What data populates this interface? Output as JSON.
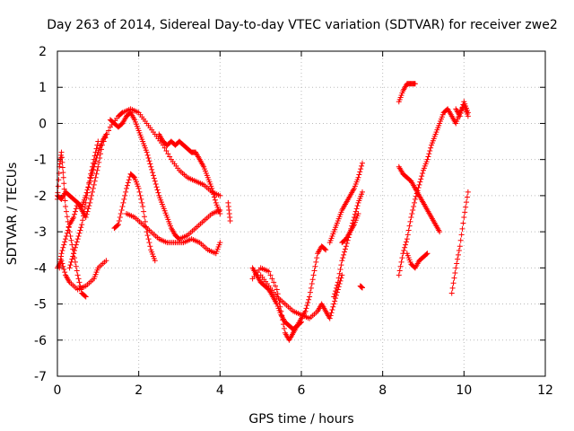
{
  "chart_data": {
    "type": "scatter",
    "title": "Day 263 of 2014, Sidereal Day-to-day VTEC variation (SDTVAR) for receiver zwe2",
    "xlabel": "GPS time / hours",
    "ylabel": "SDTVAR / TECUs",
    "xlim": [
      0,
      12
    ],
    "ylim": [
      -7,
      2
    ],
    "xticks": [
      "0",
      "2",
      "4",
      "6",
      "8",
      "10",
      "12"
    ],
    "yticks": [
      "-7",
      "-6",
      "-5",
      "-4",
      "-3",
      "-2",
      "-1",
      "0",
      "1",
      "2"
    ],
    "grid": true,
    "marker": "+",
    "color": "#ff0000",
    "series": [
      {
        "name": "track-1",
        "x": [
          0.0,
          0.1,
          0.2,
          0.3,
          0.5,
          0.7,
          0.9,
          1.0,
          1.2
        ],
        "y": [
          -4.0,
          -3.8,
          -4.2,
          -4.4,
          -4.6,
          -4.5,
          -4.3,
          -4.0,
          -3.8
        ]
      },
      {
        "name": "track-2",
        "x": [
          0.0,
          0.05,
          0.1,
          0.15,
          0.2,
          0.3,
          0.4,
          0.5,
          0.6,
          0.7
        ],
        "y": [
          -2.1,
          -1.2,
          -0.8,
          -1.5,
          -2.3,
          -3.0,
          -3.6,
          -4.2,
          -4.7,
          -4.8
        ]
      },
      {
        "name": "track-3",
        "x": [
          0.0,
          0.1,
          0.2,
          0.3,
          0.4,
          0.5,
          0.6,
          0.7,
          0.8,
          0.9,
          1.0,
          1.1,
          1.2
        ],
        "y": [
          -2.0,
          -2.1,
          -1.9,
          -2.0,
          -2.1,
          -2.2,
          -2.3,
          -2.0,
          -1.6,
          -1.2,
          -0.8,
          -0.5,
          -0.3
        ]
      },
      {
        "name": "track-4",
        "x": [
          0.05,
          0.1,
          0.2,
          0.3,
          0.4,
          0.5,
          0.6,
          0.7,
          0.8,
          0.9,
          1.0,
          1.1,
          1.3,
          1.5,
          1.6,
          1.8,
          2.0,
          2.2,
          2.4,
          2.6,
          2.8,
          3.0,
          3.2,
          3.4,
          3.6,
          3.8,
          4.0
        ],
        "y": [
          -4.0,
          -3.6,
          -3.2,
          -2.8,
          -2.6,
          -2.2,
          -2.4,
          -2.6,
          -2.2,
          -1.7,
          -1.2,
          -0.6,
          -0.1,
          0.2,
          0.3,
          0.4,
          0.3,
          0.0,
          -0.3,
          -0.6,
          -1.0,
          -1.3,
          -1.5,
          -1.6,
          -1.7,
          -1.9,
          -2.0
        ]
      },
      {
        "name": "track-5",
        "x": [
          0.3,
          0.4,
          0.5,
          0.6,
          0.7,
          0.8,
          0.9,
          1.0
        ],
        "y": [
          -4.0,
          -3.6,
          -3.2,
          -2.8,
          -2.2,
          -1.5,
          -1.0,
          -0.5
        ]
      },
      {
        "name": "track-6",
        "x": [
          1.4,
          1.5,
          1.6,
          1.7,
          1.8,
          1.9,
          2.0,
          2.1,
          2.2,
          2.3,
          2.4
        ],
        "y": [
          -2.9,
          -2.8,
          -2.3,
          -1.8,
          -1.4,
          -1.5,
          -1.8,
          -2.3,
          -3.0,
          -3.5,
          -3.8
        ]
      },
      {
        "name": "track-7",
        "x": [
          1.3,
          1.4,
          1.5,
          1.6,
          1.7,
          1.8,
          1.9,
          2.0,
          2.1,
          2.2,
          2.3,
          2.4,
          2.5,
          2.6,
          2.7,
          2.8,
          2.9,
          3.0,
          3.2,
          3.4,
          3.6,
          3.8,
          4.0
        ],
        "y": [
          0.1,
          0.0,
          -0.1,
          0.0,
          0.2,
          0.3,
          0.1,
          -0.2,
          -0.5,
          -0.8,
          -1.2,
          -1.6,
          -2.0,
          -2.3,
          -2.6,
          -2.9,
          -3.1,
          -3.2,
          -3.1,
          -2.9,
          -2.7,
          -2.5,
          -2.4
        ]
      },
      {
        "name": "track-8",
        "x": [
          1.7,
          1.9,
          2.1,
          2.3,
          2.5,
          2.7,
          2.9,
          3.1,
          3.3,
          3.5,
          3.7,
          3.9,
          4.0
        ],
        "y": [
          -2.5,
          -2.6,
          -2.8,
          -3.0,
          -3.2,
          -3.3,
          -3.3,
          -3.3,
          -3.2,
          -3.3,
          -3.5,
          -3.6,
          -3.3
        ]
      },
      {
        "name": "track-9",
        "x": [
          2.5,
          2.6,
          2.7,
          2.8,
          2.9,
          3.0,
          3.1,
          3.2,
          3.3,
          3.4,
          3.5,
          3.6,
          3.7,
          3.8,
          3.9,
          4.0
        ],
        "y": [
          -0.3,
          -0.5,
          -0.6,
          -0.5,
          -0.6,
          -0.5,
          -0.6,
          -0.7,
          -0.8,
          -0.8,
          -1.0,
          -1.2,
          -1.5,
          -1.8,
          -2.2,
          -2.5
        ]
      },
      {
        "name": "track-10",
        "x": [
          4.2,
          4.25
        ],
        "y": [
          -2.2,
          -2.7
        ]
      },
      {
        "name": "track-11",
        "x": [
          4.8,
          4.9,
          5.0,
          5.1,
          5.2,
          5.3,
          5.4,
          5.5,
          5.6,
          5.7,
          5.8,
          5.9,
          6.0
        ],
        "y": [
          -4.0,
          -4.2,
          -4.4,
          -4.5,
          -4.6,
          -4.8,
          -5.0,
          -5.3,
          -5.5,
          -5.6,
          -5.7,
          -5.6,
          -5.5
        ]
      },
      {
        "name": "track-12",
        "x": [
          4.8,
          5.0,
          5.2,
          5.4,
          5.5,
          5.6,
          5.7,
          5.8,
          5.9,
          6.0,
          6.1,
          6.2,
          6.3,
          6.4,
          6.5,
          6.6
        ],
        "y": [
          -4.3,
          -4.0,
          -4.1,
          -4.6,
          -5.2,
          -5.8,
          -6.0,
          -5.8,
          -5.6,
          -5.4,
          -5.2,
          -4.8,
          -4.2,
          -3.6,
          -3.4,
          -3.5
        ]
      },
      {
        "name": "track-13",
        "x": [
          5.0,
          5.2,
          5.4,
          5.6,
          5.8,
          6.0,
          6.2,
          6.4,
          6.5,
          6.6,
          6.7,
          6.8,
          6.9,
          7.0
        ],
        "y": [
          -4.2,
          -4.5,
          -4.8,
          -5.0,
          -5.2,
          -5.3,
          -5.4,
          -5.2,
          -5.0,
          -5.2,
          -5.4,
          -5.0,
          -4.6,
          -4.2
        ]
      },
      {
        "name": "track-14",
        "x": [
          6.7,
          6.8,
          6.9,
          7.0,
          7.1,
          7.2,
          7.3,
          7.4,
          7.5
        ],
        "y": [
          -3.3,
          -3.0,
          -2.7,
          -2.4,
          -2.2,
          -2.0,
          -1.8,
          -1.5,
          -1.1
        ]
      },
      {
        "name": "track-15",
        "x": [
          6.8,
          6.9,
          7.0,
          7.1,
          7.2,
          7.3,
          7.4,
          7.5
        ],
        "y": [
          -4.8,
          -4.4,
          -3.8,
          -3.4,
          -3.0,
          -2.6,
          -2.2,
          -1.9
        ]
      },
      {
        "name": "track-16",
        "x": [
          7.0,
          7.1,
          7.2,
          7.3,
          7.4
        ],
        "y": [
          -3.3,
          -3.2,
          -3.0,
          -2.8,
          -2.5
        ]
      },
      {
        "name": "track-17",
        "x": [
          7.45,
          7.5
        ],
        "y": [
          -4.5,
          -4.55
        ]
      },
      {
        "name": "track-18",
        "x": [
          8.4,
          8.5,
          8.6,
          8.7,
          8.8
        ],
        "y": [
          0.6,
          0.9,
          1.1,
          1.1,
          1.1
        ]
      },
      {
        "name": "track-19",
        "x": [
          8.4,
          8.5,
          8.6,
          8.7,
          8.8,
          8.9,
          9.0,
          9.1,
          9.2,
          9.3,
          9.4
        ],
        "y": [
          -1.2,
          -1.4,
          -1.5,
          -1.6,
          -1.8,
          -2.0,
          -2.2,
          -2.4,
          -2.6,
          -2.8,
          -3.0
        ]
      },
      {
        "name": "track-20",
        "x": [
          8.4,
          8.5,
          8.6,
          8.7,
          8.8,
          8.9,
          9.0,
          9.1,
          9.2,
          9.3,
          9.4,
          9.5,
          9.6,
          9.7,
          9.8,
          9.9,
          10.0,
          10.1
        ],
        "y": [
          -4.2,
          -3.6,
          -3.2,
          -2.6,
          -2.1,
          -1.7,
          -1.3,
          -1.0,
          -0.6,
          -0.3,
          0.0,
          0.3,
          0.4,
          0.2,
          0.0,
          0.3,
          0.5,
          0.2
        ]
      },
      {
        "name": "track-21",
        "x": [
          8.6,
          8.7,
          8.8,
          8.9,
          9.0,
          9.1
        ],
        "y": [
          -3.6,
          -3.9,
          -4.0,
          -3.8,
          -3.7,
          -3.6
        ]
      },
      {
        "name": "track-22",
        "x": [
          9.8,
          9.9,
          10.0,
          10.1
        ],
        "y": [
          0.4,
          0.2,
          0.6,
          0.3
        ]
      },
      {
        "name": "track-23",
        "x": [
          9.7,
          9.8,
          9.9,
          10.0,
          10.1
        ],
        "y": [
          -4.7,
          -4.0,
          -3.4,
          -2.6,
          -1.9
        ]
      }
    ]
  }
}
